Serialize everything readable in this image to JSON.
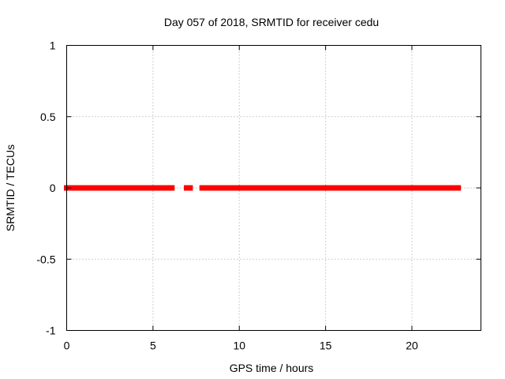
{
  "chart_data": {
    "type": "scatter",
    "title": "Day 057 of 2018, SRMTID for receiver cedu",
    "xlabel": "GPS time / hours",
    "ylabel": "SRMTID / TECUs",
    "xlim": [
      0,
      24
    ],
    "ylim": [
      -1,
      1
    ],
    "x_ticks": [
      0,
      5,
      10,
      15,
      20
    ],
    "y_ticks": [
      -1,
      -0.5,
      0,
      0.5,
      1
    ],
    "x_tick_labels": [
      "0",
      "5",
      "10",
      "15",
      "20"
    ],
    "y_tick_labels": [
      "-1",
      "-0.5",
      "0",
      "0.5",
      "1"
    ],
    "grid": true,
    "series": [
      {
        "name": "SRMTID",
        "color": "#ff0000",
        "marker": "square",
        "y_value": 0,
        "step_hours": 0.0333,
        "x_segments": [
          [
            0.0,
            6.1
          ],
          [
            6.95,
            7.15
          ],
          [
            7.85,
            15.5
          ],
          [
            15.75,
            15.8
          ],
          [
            16.0,
            22.4
          ],
          [
            22.55,
            22.7
          ]
        ]
      }
    ]
  }
}
